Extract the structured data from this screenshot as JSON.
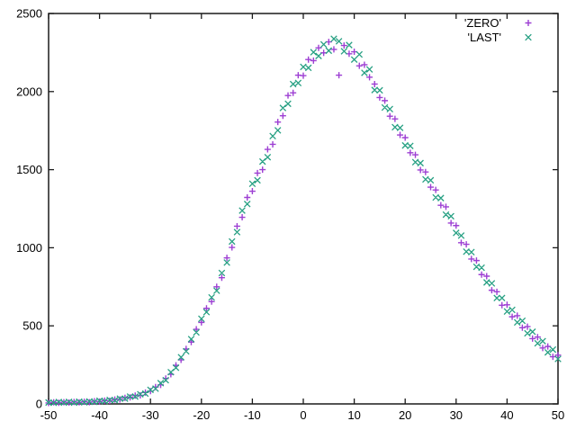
{
  "chart": {
    "background_color": "#ffffff",
    "border_color": "#1a1a1a",
    "legend": {
      "position": "top-right-inside",
      "entries": [
        {
          "label": "'ZERO'",
          "marker": "plus"
        },
        {
          "label": "'LAST'",
          "marker": "cross"
        }
      ]
    }
  },
  "chart_data": {
    "type": "scatter",
    "title": "",
    "xlabel": "",
    "ylabel": "",
    "xlim": [
      -50,
      50
    ],
    "ylim": [
      0,
      2500
    ],
    "x_ticks": [
      -50,
      -40,
      -30,
      -20,
      -10,
      0,
      10,
      20,
      30,
      40,
      50
    ],
    "y_ticks": [
      0,
      500,
      1000,
      1500,
      2000,
      2500
    ],
    "grid": false,
    "legend_position": "top-right-inside",
    "x": [
      -50,
      -49,
      -48,
      -47,
      -46,
      -45,
      -44,
      -43,
      -42,
      -41,
      -40,
      -39,
      -38,
      -37,
      -36,
      -35,
      -34,
      -33,
      -32,
      -31,
      -30,
      -29,
      -28,
      -27,
      -26,
      -25,
      -24,
      -23,
      -22,
      -21,
      -20,
      -19,
      -18,
      -17,
      -16,
      -15,
      -14,
      -13,
      -12,
      -11,
      -10,
      -9,
      -8,
      -7,
      -6,
      -5,
      -4,
      -3,
      -2,
      -1,
      0,
      1,
      2,
      3,
      4,
      5,
      6,
      7,
      8,
      9,
      10,
      11,
      12,
      13,
      14,
      15,
      16,
      17,
      18,
      19,
      20,
      21,
      22,
      23,
      24,
      25,
      26,
      27,
      28,
      29,
      30,
      31,
      32,
      33,
      34,
      35,
      36,
      37,
      38,
      39,
      40,
      41,
      42,
      43,
      44,
      45,
      46,
      47,
      48,
      49,
      50
    ],
    "series": [
      {
        "name": "'ZERO'",
        "marker": "plus",
        "color": "#9d3fd3",
        "values": [
          6,
          10,
          7,
          11,
          9,
          12,
          10,
          14,
          11,
          17,
          15,
          21,
          20,
          28,
          29,
          39,
          42,
          53,
          55,
          73,
          82,
          108,
          122,
          163,
          190,
          247,
          282,
          352,
          396,
          478,
          522,
          612,
          655,
          750,
          808,
          935,
          1002,
          1138,
          1195,
          1322,
          1362,
          1478,
          1500,
          1630,
          1662,
          1805,
          1845,
          1975,
          1992,
          2105,
          2102,
          2205,
          2198,
          2280,
          2248,
          2318,
          2270,
          2105,
          2295,
          2242,
          2255,
          2165,
          2172,
          2092,
          2048,
          1962,
          1942,
          1842,
          1825,
          1722,
          1705,
          1608,
          1595,
          1498,
          1485,
          1388,
          1370,
          1272,
          1262,
          1158,
          1142,
          1032,
          1022,
          928,
          918,
          828,
          818,
          728,
          718,
          632,
          635,
          558,
          565,
          488,
          495,
          418,
          428,
          358,
          368,
          302,
          312
        ]
      },
      {
        "name": "'LAST'",
        "marker": "cross",
        "color": "#27a083",
        "values": [
          9,
          7,
          12,
          8,
          13,
          8,
          14,
          10,
          16,
          13,
          20,
          17,
          25,
          23,
          34,
          34,
          47,
          47,
          62,
          66,
          90,
          98,
          133,
          152,
          203,
          232,
          299,
          337,
          415,
          458,
          545,
          588,
          682,
          725,
          838,
          905,
          1040,
          1100,
          1238,
          1280,
          1410,
          1432,
          1552,
          1580,
          1715,
          1752,
          1895,
          1922,
          2048,
          2055,
          2158,
          2152,
          2252,
          2228,
          2302,
          2262,
          2338,
          2322,
          2258,
          2298,
          2205,
          2238,
          2120,
          2142,
          2010,
          2008,
          1898,
          1888,
          1772,
          1768,
          1655,
          1652,
          1548,
          1542,
          1438,
          1432,
          1322,
          1318,
          1212,
          1202,
          1095,
          1078,
          975,
          972,
          878,
          872,
          778,
          772,
          678,
          678,
          592,
          602,
          522,
          532,
          452,
          462,
          388,
          402,
          330,
          348,
          288
        ]
      }
    ]
  }
}
